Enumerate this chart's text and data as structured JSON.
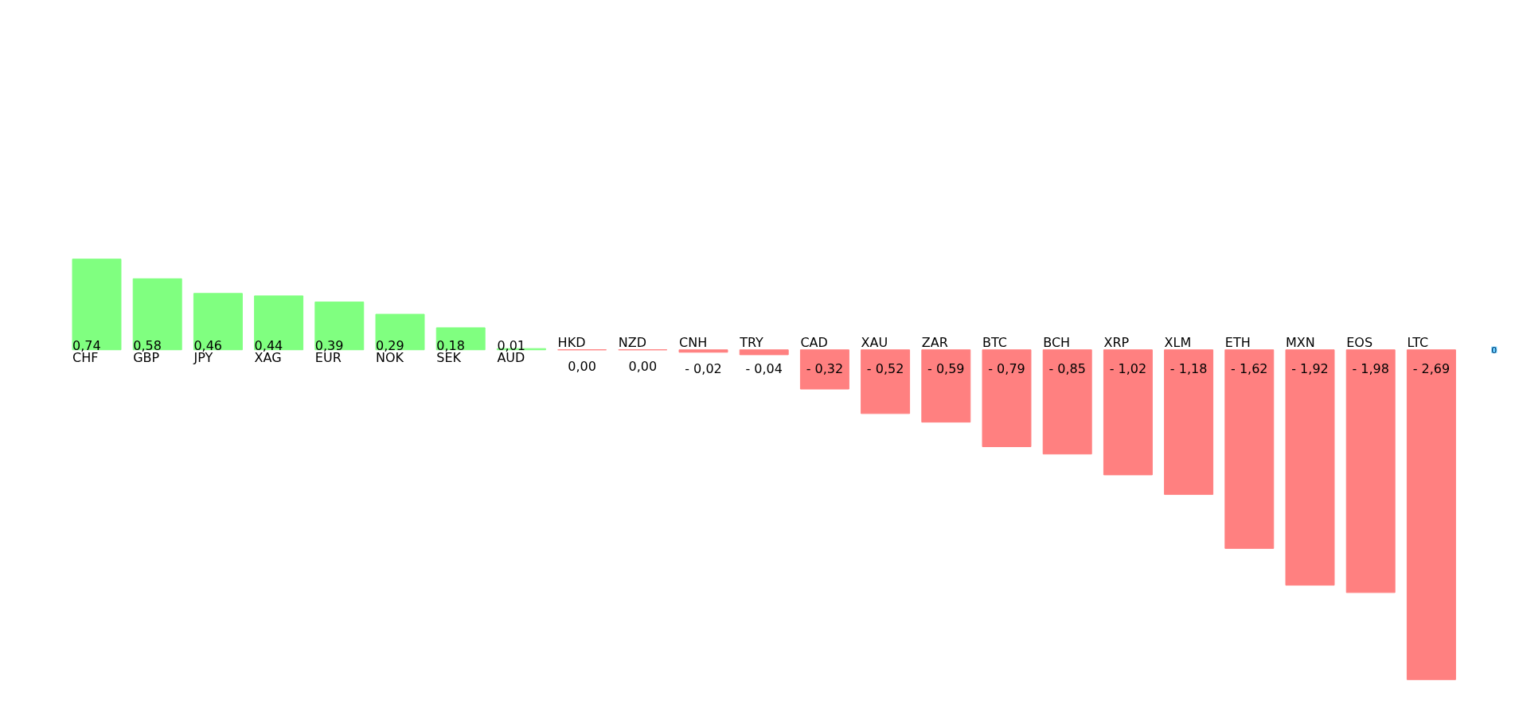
{
  "chart_data": {
    "type": "bar",
    "categories": [
      "CHF",
      "GBP",
      "JPY",
      "XAG",
      "EUR",
      "NOK",
      "SEK",
      "AUD",
      "HKD",
      "NZD",
      "CNH",
      "TRY",
      "CAD",
      "XAU",
      "ZAR",
      "BTC",
      "BCH",
      "XRP",
      "XLM",
      "ETH",
      "MXN",
      "EOS",
      "LTC"
    ],
    "values": [
      0.74,
      0.58,
      0.46,
      0.44,
      0.39,
      0.29,
      0.18,
      0.01,
      0.0,
      0.0,
      -0.02,
      -0.04,
      -0.32,
      -0.52,
      -0.59,
      -0.79,
      -0.85,
      -1.02,
      -1.18,
      -1.62,
      -1.92,
      -1.98,
      -2.69
    ],
    "colors": [
      "#80ff80",
      "#80ff80",
      "#80ff80",
      "#80ff80",
      "#80ff80",
      "#80ff80",
      "#80ff80",
      "#80ff80",
      "#ff8080",
      "#ff8080",
      "#ff8080",
      "#ff8080",
      "#ff8080",
      "#ff8080",
      "#ff8080",
      "#ff8080",
      "#ff8080",
      "#ff8080",
      "#ff8080",
      "#ff8080",
      "#ff8080",
      "#ff8080",
      "#ff8080"
    ],
    "value_labels": [
      "0,74",
      "0,58",
      "0,46",
      "0,44",
      "0,39",
      "0,29",
      "0,18",
      "0,01",
      "0,00",
      "0,00",
      "- 0,02",
      "- 0,04",
      "- 0,32",
      "- 0,52",
      "- 0,59",
      "- 0,79",
      "- 0,85",
      "- 1,02",
      "- 1,18",
      "- 1,62",
      "- 1,92",
      "- 1,98",
      "- 2,69"
    ],
    "annotations": [
      "0"
    ],
    "ylim": [
      -2.99,
      2.85
    ],
    "grid": false
  }
}
